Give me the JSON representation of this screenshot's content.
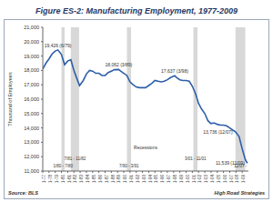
{
  "chart_data": {
    "type": "line",
    "title": "Figure ES-2:  Manufacturing Employment, 1977-2009",
    "y_label": "Thousand of Employees",
    "source": "Source: BLS",
    "credit": "High Road Strategies",
    "color": "#2e5fa8",
    "grid": false,
    "x": [
      1977.0,
      1977.5,
      1978.0,
      1978.5,
      1979.0,
      1979.42,
      1979.75,
      1980.0,
      1980.5,
      1981.0,
      1981.5,
      1982.0,
      1982.5,
      1982.9,
      1983.5,
      1984.0,
      1984.5,
      1985.0,
      1985.5,
      1986.0,
      1986.5,
      1987.0,
      1987.5,
      1988.0,
      1988.5,
      1989.17,
      1989.5,
      1990.0,
      1990.5,
      1991.0,
      1991.5,
      1992.0,
      1992.5,
      1993.0,
      1993.5,
      1994.0,
      1994.5,
      1995.0,
      1995.5,
      1996.0,
      1996.5,
      1997.0,
      1997.5,
      1998.17,
      1998.5,
      1999.0,
      1999.5,
      2000.0,
      2000.5,
      2001.0,
      2001.5,
      2002.0,
      2002.5,
      2003.0,
      2003.5,
      2004.0,
      2004.5,
      2005.0,
      2005.5,
      2006.0,
      2006.5,
      2007.0,
      2007.5,
      2007.92,
      2008.5,
      2009.0,
      2009.5,
      2009.83
    ],
    "values": [
      18100,
      18500,
      18800,
      19150,
      19350,
      19426,
      19250,
      19100,
      18400,
      18650,
      18750,
      18000,
      17400,
      16950,
      17300,
      17750,
      18000,
      17950,
      17800,
      17800,
      17650,
      17650,
      17850,
      17950,
      18050,
      18062,
      17950,
      17800,
      17650,
      17200,
      17000,
      16850,
      16800,
      16800,
      16800,
      16950,
      17100,
      17300,
      17250,
      17200,
      17250,
      17350,
      17500,
      17637,
      17500,
      17350,
      17300,
      17300,
      17250,
      16900,
      16400,
      15700,
      15300,
      15000,
      14500,
      14300,
      14350,
      14250,
      14200,
      14200,
      14150,
      14000,
      13850,
      13736,
      13400,
      12550,
      11800,
      11539
    ],
    "xlim": [
      1977,
      2010
    ],
    "xticks": [
      {
        "value": 1977,
        "label": "1-77"
      },
      {
        "value": 1978,
        "label": "1-78"
      },
      {
        "value": 1979,
        "label": "1-79"
      },
      {
        "value": 1980,
        "label": "1-80"
      },
      {
        "value": 1981,
        "label": "1-81"
      },
      {
        "value": 1982,
        "label": "1-82"
      },
      {
        "value": 1983,
        "label": "1-83"
      },
      {
        "value": 1984,
        "label": "1-84"
      },
      {
        "value": 1985,
        "label": "1-85"
      },
      {
        "value": 1986,
        "label": "1-86"
      },
      {
        "value": 1987,
        "label": "1-87"
      },
      {
        "value": 1988,
        "label": "1-88"
      },
      {
        "value": 1989,
        "label": "1-89"
      },
      {
        "value": 1990,
        "label": "1-90"
      },
      {
        "value": 1991,
        "label": "1-91"
      },
      {
        "value": 1992,
        "label": "1-92"
      },
      {
        "value": 1993,
        "label": "1-93"
      },
      {
        "value": 1994,
        "label": "1-94"
      },
      {
        "value": 1995,
        "label": "1-95"
      },
      {
        "value": 1996,
        "label": "1-96"
      },
      {
        "value": 1997,
        "label": "1-97"
      },
      {
        "value": 1998,
        "label": "1-98"
      },
      {
        "value": 1999,
        "label": "1-99"
      },
      {
        "value": 2000,
        "label": "1-00"
      },
      {
        "value": 2001,
        "label": "1-01"
      },
      {
        "value": 2002,
        "label": "1-02"
      },
      {
        "value": 2003,
        "label": "1-03"
      },
      {
        "value": 2004,
        "label": "1-04"
      },
      {
        "value": 2005,
        "label": "1-05"
      },
      {
        "value": 2006,
        "label": "1-06"
      },
      {
        "value": 2007,
        "label": "1-07"
      },
      {
        "value": 2008,
        "label": "1-08"
      },
      {
        "value": 2009,
        "label": "1-09"
      }
    ],
    "ylim": [
      11000,
      21000
    ],
    "yticks": [
      {
        "value": 11000,
        "label": "11,000"
      },
      {
        "value": 12000,
        "label": "12,000"
      },
      {
        "value": 13000,
        "label": "13,000"
      },
      {
        "value": 14000,
        "label": "14,000"
      },
      {
        "value": 15000,
        "label": "15,000"
      },
      {
        "value": 16000,
        "label": "16,000"
      },
      {
        "value": 17000,
        "label": "17,000"
      },
      {
        "value": 18000,
        "label": "18,000"
      },
      {
        "value": 19000,
        "label": "19,000"
      },
      {
        "value": 20000,
        "label": "20,000"
      },
      {
        "value": 21000,
        "label": "21,000"
      }
    ],
    "annotations": [
      {
        "x": 1979.42,
        "y": 19426,
        "label": "19,426 (6/79)"
      },
      {
        "x": 1989.17,
        "y": 18062,
        "label": "18,062 (3/89)"
      },
      {
        "x": 1998.17,
        "y": 17637,
        "label": "17,637 (3/98)"
      },
      {
        "x": 2007.92,
        "y": 13736,
        "label": "13,736 (12/07)"
      },
      {
        "x": 2009.83,
        "y": 11539,
        "label": "11,539 (11/09)"
      }
    ],
    "recessions_title": "Recessions",
    "recessions": [
      {
        "start": 1980.0,
        "end": 1980.5,
        "label": "1/80 - 7/80"
      },
      {
        "start": 1981.5,
        "end": 1982.83,
        "label": "7/81 - 11/82"
      },
      {
        "start": 1990.5,
        "end": 1991.17,
        "label": "7/90 - 3/91"
      },
      {
        "start": 2001.17,
        "end": 2001.83,
        "label": "3/01 - 11/01"
      },
      {
        "start": 2007.92,
        "end": 2009.5,
        "label": "12/07 -"
      }
    ]
  }
}
